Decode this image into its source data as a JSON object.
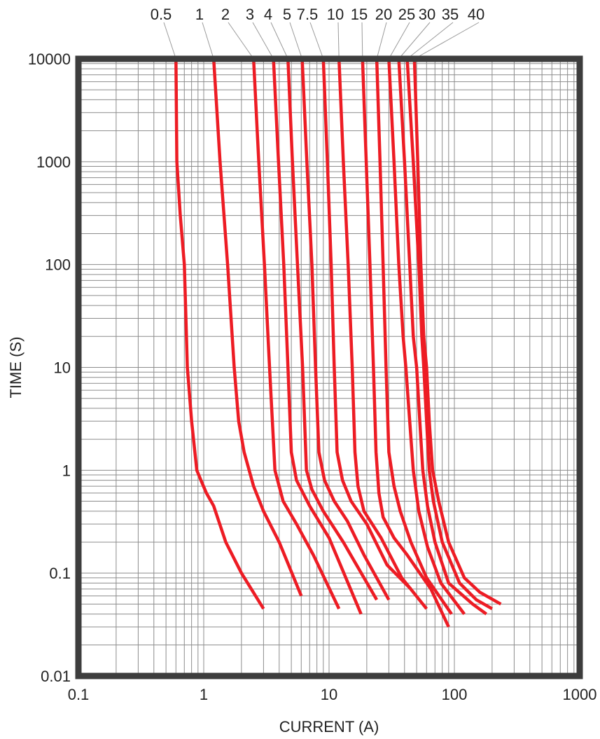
{
  "chart_data": {
    "type": "line",
    "title": "",
    "xlabel": "CURRENT (A)",
    "ylabel": "TIME (S)",
    "xscale": "log",
    "yscale": "log",
    "xlim": [
      0.1,
      1000
    ],
    "ylim": [
      0.01,
      10000
    ],
    "grid": true,
    "legend": "curve labels along top edge",
    "xticks": [
      "0.1",
      "1",
      "10",
      "100",
      "1000"
    ],
    "yticks": [
      "0.01",
      "0.1",
      "1",
      "10",
      "100",
      "1000",
      "10000"
    ],
    "curve_color": "#ed1c24",
    "frame_color": "#3d3d3d",
    "grid_color": "#8c8c8c",
    "series": [
      {
        "name": "0.5",
        "points": [
          [
            0.6,
            10000
          ],
          [
            0.61,
            1000
          ],
          [
            0.65,
            300
          ],
          [
            0.7,
            100
          ],
          [
            0.74,
            10
          ],
          [
            0.8,
            3
          ],
          [
            0.88,
            1
          ],
          [
            0.95,
            0.8
          ],
          [
            1.05,
            0.6
          ],
          [
            1.2,
            0.45
          ],
          [
            1.5,
            0.2
          ],
          [
            2,
            0.1
          ],
          [
            3,
            0.045
          ]
        ]
      },
      {
        "name": "1",
        "points": [
          [
            1.2,
            10000
          ],
          [
            1.35,
            1000
          ],
          [
            1.55,
            100
          ],
          [
            1.75,
            10
          ],
          [
            1.9,
            3
          ],
          [
            2.1,
            1.5
          ],
          [
            2.5,
            0.7
          ],
          [
            3,
            0.4
          ],
          [
            4,
            0.2
          ],
          [
            6,
            0.06
          ]
        ]
      },
      {
        "name": "2",
        "points": [
          [
            2.5,
            10000
          ],
          [
            2.75,
            1000
          ],
          [
            3.05,
            100
          ],
          [
            3.35,
            10
          ],
          [
            3.7,
            1
          ],
          [
            4.3,
            0.5
          ],
          [
            5.5,
            0.3
          ],
          [
            7.5,
            0.15
          ],
          [
            12,
            0.045
          ]
        ]
      },
      {
        "name": "3",
        "points": [
          [
            3.6,
            10000
          ],
          [
            3.95,
            1000
          ],
          [
            4.35,
            100
          ],
          [
            4.7,
            10
          ],
          [
            5,
            1.5
          ],
          [
            5.5,
            0.8
          ],
          [
            7,
            0.45
          ],
          [
            10,
            0.22
          ],
          [
            18,
            0.04
          ]
        ]
      },
      {
        "name": "4",
        "points": [
          [
            4.7,
            10000
          ],
          [
            5.1,
            1000
          ],
          [
            5.6,
            100
          ],
          [
            6.15,
            10
          ],
          [
            6.6,
            1
          ],
          [
            7.3,
            0.65
          ],
          [
            9,
            0.4
          ],
          [
            13,
            0.2
          ],
          [
            24,
            0.055
          ]
        ]
      },
      {
        "name": "5",
        "points": [
          [
            6.1,
            10000
          ],
          [
            6.65,
            1000
          ],
          [
            7.3,
            100
          ],
          [
            7.8,
            10
          ],
          [
            8.3,
            1.5
          ],
          [
            9.2,
            0.8
          ],
          [
            11,
            0.5
          ],
          [
            14,
            0.32
          ],
          [
            19,
            0.15
          ],
          [
            30,
            0.055
          ]
        ]
      },
      {
        "name": "7.5",
        "points": [
          [
            9,
            10000
          ],
          [
            9.7,
            1000
          ],
          [
            10.4,
            100
          ],
          [
            11,
            10
          ],
          [
            11.6,
            1.5
          ],
          [
            12.8,
            0.8
          ],
          [
            15,
            0.5
          ],
          [
            20,
            0.3
          ],
          [
            29,
            0.12
          ],
          [
            45,
            0.07
          ]
        ]
      },
      {
        "name": "10",
        "points": [
          [
            12,
            10000
          ],
          [
            13,
            1000
          ],
          [
            14.2,
            100
          ],
          [
            15.3,
            10
          ],
          [
            16.1,
            1.5
          ],
          [
            17,
            0.7
          ],
          [
            19,
            0.4
          ],
          [
            26,
            0.22
          ],
          [
            38,
            0.09
          ],
          [
            60,
            0.045
          ]
        ]
      },
      {
        "name": "15",
        "points": [
          [
            18.5,
            10000
          ],
          [
            19.8,
            1000
          ],
          [
            21.2,
            100
          ],
          [
            22.6,
            10
          ],
          [
            23.7,
            1.5
          ],
          [
            25,
            0.6
          ],
          [
            27,
            0.35
          ],
          [
            33,
            0.22
          ],
          [
            42,
            0.15
          ],
          [
            53,
            0.1
          ],
          [
            65,
            0.07
          ],
          [
            90,
            0.03
          ]
        ]
      },
      {
        "name": "20",
        "points": [
          [
            24,
            10000
          ],
          [
            25.5,
            1000
          ],
          [
            27,
            100
          ],
          [
            28.5,
            10
          ],
          [
            30,
            1.5
          ],
          [
            33,
            0.7
          ],
          [
            37,
            0.4
          ],
          [
            45,
            0.2
          ],
          [
            60,
            0.09
          ],
          [
            95,
            0.04
          ]
        ]
      },
      {
        "name": "25",
        "points": [
          [
            30,
            10000
          ],
          [
            33,
            1000
          ],
          [
            36,
            100
          ],
          [
            39,
            20
          ],
          [
            41,
            10
          ],
          [
            44,
            3
          ],
          [
            47,
            1
          ],
          [
            52,
            0.4
          ],
          [
            61,
            0.18
          ],
          [
            78,
            0.08
          ],
          [
            120,
            0.04
          ]
        ]
      },
      {
        "name": "30",
        "points": [
          [
            36,
            10000
          ],
          [
            40,
            1000
          ],
          [
            44,
            100
          ],
          [
            47,
            20
          ],
          [
            50,
            10
          ],
          [
            53,
            3
          ],
          [
            56,
            1
          ],
          [
            61,
            0.45
          ],
          [
            70,
            0.2
          ],
          [
            90,
            0.08
          ],
          [
            140,
            0.05
          ],
          [
            180,
            0.04
          ]
        ]
      },
      {
        "name": "35",
        "points": [
          [
            42,
            10000
          ],
          [
            47,
            1000
          ],
          [
            52,
            100
          ],
          [
            55,
            20
          ],
          [
            57,
            10
          ],
          [
            60,
            3
          ],
          [
            63,
            1
          ],
          [
            68,
            0.5
          ],
          [
            80,
            0.2
          ],
          [
            110,
            0.08
          ],
          [
            150,
            0.055
          ],
          [
            200,
            0.045
          ]
        ]
      },
      {
        "name": "40",
        "points": [
          [
            48,
            10000
          ],
          [
            51,
            1000
          ],
          [
            54,
            100
          ],
          [
            57,
            20
          ],
          [
            60,
            10
          ],
          [
            63,
            3
          ],
          [
            67,
            1
          ],
          [
            75,
            0.5
          ],
          [
            90,
            0.2
          ],
          [
            120,
            0.09
          ],
          [
            160,
            0.065
          ],
          [
            235,
            0.05
          ]
        ]
      }
    ]
  }
}
